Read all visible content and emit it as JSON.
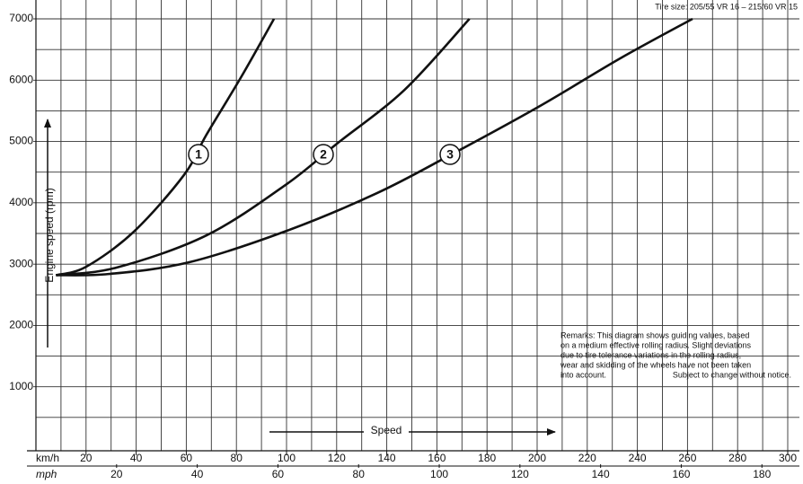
{
  "chart_data": {
    "type": "line",
    "title": "Tire size: 205/55 VR 16 – 215/60 VR 15",
    "x_label": "Speed",
    "x_unit": "km/h",
    "x2_unit": "mph",
    "y_label": "Engine speed (rpm)",
    "xlim": [
      0,
      300
    ],
    "xticks": [
      20,
      40,
      60,
      80,
      100,
      120,
      140,
      160,
      180,
      200,
      220,
      240,
      260,
      280,
      300
    ],
    "xminorticks": [
      10,
      30,
      50,
      70,
      90,
      110,
      130,
      150,
      170,
      190,
      210,
      230,
      250,
      270,
      290
    ],
    "x2lim": [
      0,
      186.4
    ],
    "x2ticks": [
      20,
      40,
      60,
      80,
      100,
      120,
      140,
      160,
      180
    ],
    "ylim": [
      0,
      7000
    ],
    "yticks": [
      1000,
      2000,
      3000,
      4000,
      5000,
      6000,
      7000
    ],
    "yminorticks": [
      500,
      1500,
      2500,
      3500,
      4500,
      5500,
      6500
    ],
    "grid": true,
    "series": [
      {
        "name": "1",
        "color": "#111111",
        "x": [
          8,
          20,
          39,
          59,
          68,
          82,
          95
        ],
        "values": [
          2820,
          2956,
          3527,
          4449,
          5107,
          6059,
          7000
        ]
      },
      {
        "name": "2",
        "color": "#111111",
        "x": [
          8,
          32,
          68,
          100,
          120,
          147,
          173
        ],
        "values": [
          2820,
          2942,
          3468,
          4303,
          4961,
          5839,
          7000
        ]
      },
      {
        "name": "3",
        "color": "#111111",
        "x": [
          8,
          29,
          61,
          100,
          136,
          165,
          201,
          233,
          262
        ],
        "values": [
          2820,
          2839,
          3029,
          3542,
          4156,
          4771,
          5576,
          6352,
          7000
        ]
      }
    ],
    "remarks": [
      "Remarks: This diagram shows guiding values, based",
      "on a medium effective rolling radius. Slight deviations",
      "due to tire tolerance variations in the rolling radius,",
      "wear and skidding of the wheels have not been taken",
      "into account."
    ],
    "remarks_note": "Subject to change without notice."
  }
}
